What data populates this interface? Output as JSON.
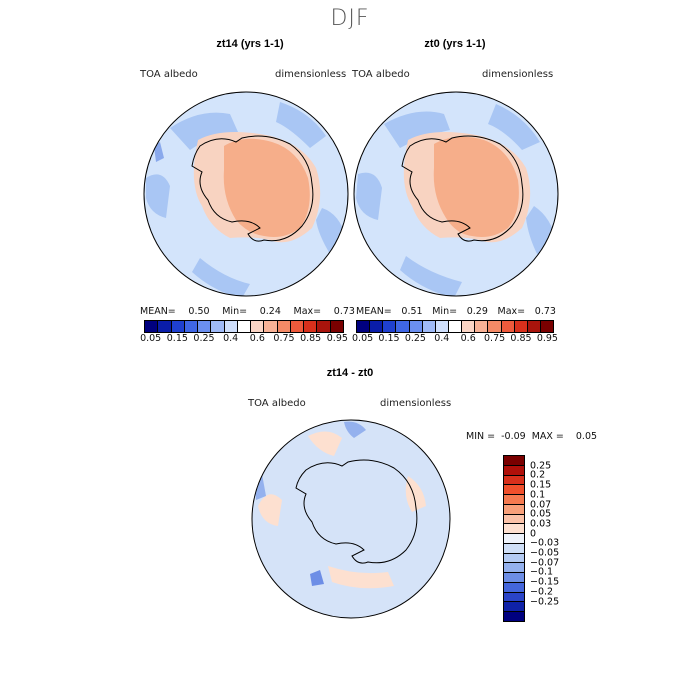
{
  "page": {
    "title": "DJF"
  },
  "panels": [
    {
      "title": "zt14 (yrs 1-1)",
      "variable": "TOA albedo",
      "units": "dimensionless",
      "stats": {
        "mean_label": "MEAN=",
        "mean": "0.50",
        "min_label": "Min=",
        "min": "0.24",
        "max_label": "Max=",
        "max": "0.73"
      }
    },
    {
      "title": "zt0 (yrs 1-1)",
      "variable": "TOA albedo",
      "units": "dimensionless",
      "stats": {
        "mean_label": "MEAN=",
        "mean": "0.51",
        "min_label": "Min=",
        "min": "0.29",
        "max_label": "Max=",
        "max": "0.73"
      }
    }
  ],
  "colorbar_top": {
    "colors": [
      "#00007f",
      "#0a1da8",
      "#1f40cf",
      "#3f66e5",
      "#6b8ff0",
      "#9fbaf7",
      "#cfdffc",
      "#ffffff",
      "#fbd5c5",
      "#f8b296",
      "#f48a66",
      "#ee5a3c",
      "#d8301c",
      "#a8140c",
      "#7a0000"
    ],
    "ticks": [
      "0.05",
      "0.15",
      "0.25",
      "0.4",
      "0.6",
      "0.75",
      "0.85",
      "0.95"
    ]
  },
  "diff_panel": {
    "title": "zt14 - zt0",
    "variable": "TOA albedo",
    "units": "dimensionless",
    "stats": {
      "min_label": "MIN =",
      "min": "-0.09",
      "max_label": "MAX =",
      "max": "0.05"
    }
  },
  "colorbar_diff": {
    "colors": [
      "#7a0000",
      "#b0100a",
      "#d8301c",
      "#f0502c",
      "#f57a50",
      "#f8a07a",
      "#fbc2a8",
      "#fde0d0",
      "#eef3fb",
      "#cfdff7",
      "#b4cbf3",
      "#94b1ee",
      "#6d8ee6",
      "#4466dc",
      "#2a44c8",
      "#0f22a8",
      "#00007f"
    ],
    "ticks": [
      "0.25",
      "0.2",
      "0.15",
      "0.1",
      "0.07",
      "0.05",
      "0.03",
      "0",
      "−0.03",
      "−0.05",
      "−0.07",
      "−0.1",
      "−0.15",
      "−0.2",
      "−0.25"
    ]
  }
}
